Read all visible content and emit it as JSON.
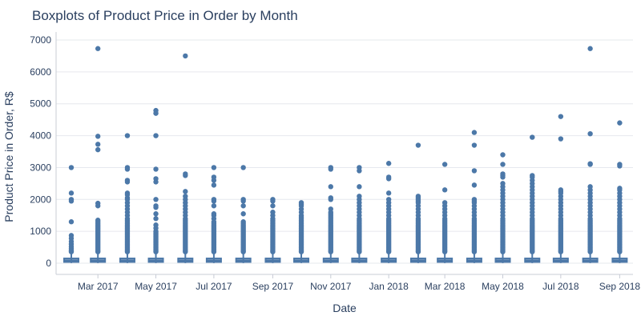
{
  "chart_data": {
    "type": "box",
    "title": "Boxplots of Product Price in Order by Month",
    "xlabel": "Date",
    "ylabel": "Product Price in Order, R$",
    "ylim": [
      -350,
      7250
    ],
    "yticks": [
      0,
      1000,
      2000,
      3000,
      4000,
      5000,
      6000,
      7000
    ],
    "xticks": [
      {
        "label": "Mar 2017",
        "date": "2017-03-01"
      },
      {
        "label": "May 2017",
        "date": "2017-05-01"
      },
      {
        "label": "Jul 2017",
        "date": "2017-07-01"
      },
      {
        "label": "Sep 2017",
        "date": "2017-09-01"
      },
      {
        "label": "Nov 2017",
        "date": "2017-11-01"
      },
      {
        "label": "Jan 2018",
        "date": "2018-01-01"
      },
      {
        "label": "Mar 2018",
        "date": "2018-03-01"
      },
      {
        "label": "May 2018",
        "date": "2018-05-01"
      },
      {
        "label": "Jul 2018",
        "date": "2018-07-01"
      },
      {
        "label": "Sep 2018",
        "date": "2018-09-01"
      }
    ],
    "xrange": [
      "2017-01-16",
      "2018-09-15"
    ],
    "grid": true,
    "color": "#4c78a8",
    "boxes": [
      {
        "month": "2017-02-01",
        "q1": 40,
        "median": 90,
        "q3": 150,
        "whisker_low": 5,
        "whisker_high": 320,
        "outliers": [
          3000,
          2200,
          2000,
          1950,
          1300,
          870,
          780,
          680,
          600,
          520,
          460,
          400,
          360
        ]
      },
      {
        "month": "2017-03-01",
        "q1": 40,
        "median": 90,
        "q3": 150,
        "whisker_low": 5,
        "whisker_high": 320,
        "outliers": [
          6730,
          3980,
          3730,
          3560,
          1880,
          1800,
          1350,
          1300,
          1250,
          1200,
          1150,
          1100,
          1050,
          1000,
          950,
          900,
          850,
          800,
          750,
          700,
          650,
          600,
          550,
          500,
          450,
          400,
          360
        ]
      },
      {
        "month": "2017-04-01",
        "q1": 40,
        "median": 90,
        "q3": 150,
        "whisker_low": 5,
        "whisker_high": 320,
        "outliers": [
          4000,
          3000,
          2950,
          2600,
          2550,
          2200,
          2150,
          2050,
          2000,
          1900,
          1800,
          1700,
          1600,
          1500,
          1400,
          1350,
          1300,
          1250,
          1200,
          1150,
          1100,
          1050,
          1000,
          950,
          900,
          850,
          800,
          750,
          700,
          650,
          600,
          550,
          500,
          450,
          400,
          360
        ]
      },
      {
        "month": "2017-05-01",
        "q1": 40,
        "median": 90,
        "q3": 150,
        "whisker_low": 5,
        "whisker_high": 320,
        "outliers": [
          4790,
          4700,
          4000,
          2950,
          2650,
          2550,
          2000,
          1800,
          1750,
          1550,
          1400,
          1200,
          1100,
          1000,
          950,
          900,
          850,
          800,
          750,
          700,
          650,
          600,
          550,
          500,
          450,
          400,
          360
        ]
      },
      {
        "month": "2017-06-01",
        "q1": 40,
        "median": 90,
        "q3": 150,
        "whisker_low": 5,
        "whisker_high": 320,
        "outliers": [
          6500,
          2800,
          2750,
          2250,
          2100,
          2000,
          1900,
          1800,
          1700,
          1600,
          1500,
          1400,
          1350,
          1300,
          1250,
          1200,
          1150,
          1100,
          1050,
          1000,
          950,
          900,
          850,
          800,
          750,
          700,
          650,
          600,
          550,
          500,
          450,
          400,
          360
        ]
      },
      {
        "month": "2017-07-01",
        "q1": 40,
        "median": 90,
        "q3": 150,
        "whisker_low": 5,
        "whisker_high": 320,
        "outliers": [
          3000,
          2700,
          2600,
          2450,
          2000,
          1950,
          1800,
          1550,
          1500,
          1400,
          1300,
          1250,
          1200,
          1150,
          1100,
          1050,
          1000,
          950,
          900,
          850,
          800,
          750,
          700,
          650,
          600,
          550,
          500,
          450,
          400,
          360
        ]
      },
      {
        "month": "2017-08-01",
        "q1": 40,
        "median": 90,
        "q3": 150,
        "whisker_low": 5,
        "whisker_high": 320,
        "outliers": [
          3000,
          2000,
          1950,
          1800,
          1550,
          1300,
          1250,
          1200,
          1150,
          1100,
          1050,
          1000,
          950,
          900,
          850,
          800,
          750,
          700,
          650,
          600,
          550,
          500,
          450,
          400,
          360
        ]
      },
      {
        "month": "2017-09-01",
        "q1": 40,
        "median": 90,
        "q3": 150,
        "whisker_low": 5,
        "whisker_high": 320,
        "outliers": [
          2000,
          1950,
          1800,
          1600,
          1500,
          1400,
          1350,
          1300,
          1250,
          1200,
          1150,
          1100,
          1050,
          1000,
          950,
          900,
          850,
          800,
          750,
          700,
          650,
          600,
          550,
          500,
          450,
          400,
          360
        ]
      },
      {
        "month": "2017-10-01",
        "q1": 40,
        "median": 90,
        "q3": 150,
        "whisker_low": 5,
        "whisker_high": 320,
        "outliers": [
          1900,
          1850,
          1800,
          1700,
          1600,
          1500,
          1450,
          1400,
          1350,
          1300,
          1250,
          1200,
          1150,
          1100,
          1050,
          1000,
          950,
          900,
          850,
          800,
          750,
          700,
          650,
          600,
          550,
          500,
          450,
          400,
          360
        ]
      },
      {
        "month": "2017-11-01",
        "q1": 40,
        "median": 90,
        "q3": 150,
        "whisker_low": 5,
        "whisker_high": 320,
        "outliers": [
          3000,
          2950,
          2400,
          2050,
          2000,
          1700,
          1600,
          1550,
          1500,
          1450,
          1400,
          1350,
          1300,
          1250,
          1200,
          1150,
          1100,
          1050,
          1000,
          950,
          900,
          850,
          800,
          750,
          700,
          650,
          600,
          550,
          500,
          450,
          400,
          360
        ]
      },
      {
        "month": "2017-12-01",
        "q1": 40,
        "median": 90,
        "q3": 150,
        "whisker_low": 5,
        "whisker_high": 320,
        "outliers": [
          3000,
          2900,
          2400,
          2100,
          2000,
          1900,
          1800,
          1700,
          1600,
          1500,
          1400,
          1350,
          1300,
          1250,
          1200,
          1150,
          1100,
          1050,
          1000,
          950,
          900,
          850,
          800,
          750,
          700,
          650,
          600,
          550,
          500,
          450,
          400,
          360
        ]
      },
      {
        "month": "2018-01-01",
        "q1": 40,
        "median": 90,
        "q3": 150,
        "whisker_low": 5,
        "whisker_high": 320,
        "outliers": [
          3130,
          2700,
          2650,
          2200,
          2000,
          1900,
          1800,
          1700,
          1600,
          1500,
          1400,
          1350,
          1300,
          1250,
          1200,
          1150,
          1100,
          1050,
          1000,
          950,
          900,
          850,
          800,
          750,
          700,
          650,
          600,
          550,
          500,
          450,
          400,
          360
        ]
      },
      {
        "month": "2018-02-01",
        "q1": 40,
        "median": 90,
        "q3": 150,
        "whisker_low": 5,
        "whisker_high": 320,
        "outliers": [
          3700,
          2100,
          2050,
          2000,
          1950,
          1900,
          1800,
          1700,
          1600,
          1500,
          1400,
          1350,
          1300,
          1250,
          1200,
          1150,
          1100,
          1050,
          1000,
          950,
          900,
          850,
          800,
          750,
          700,
          650,
          600,
          550,
          500,
          450,
          400,
          360
        ]
      },
      {
        "month": "2018-03-01",
        "q1": 40,
        "median": 90,
        "q3": 150,
        "whisker_low": 5,
        "whisker_high": 320,
        "outliers": [
          3100,
          2300,
          1900,
          1800,
          1700,
          1600,
          1500,
          1400,
          1350,
          1300,
          1250,
          1200,
          1150,
          1100,
          1050,
          1000,
          950,
          900,
          850,
          800,
          750,
          700,
          650,
          600,
          550,
          500,
          450,
          400,
          360
        ]
      },
      {
        "month": "2018-04-01",
        "q1": 40,
        "median": 90,
        "q3": 150,
        "whisker_low": 5,
        "whisker_high": 320,
        "outliers": [
          4100,
          3700,
          2900,
          2450,
          2000,
          1950,
          1900,
          1800,
          1700,
          1600,
          1500,
          1400,
          1350,
          1300,
          1250,
          1200,
          1150,
          1100,
          1050,
          1000,
          950,
          900,
          850,
          800,
          750,
          700,
          650,
          600,
          550,
          500,
          450,
          400,
          360
        ]
      },
      {
        "month": "2018-05-01",
        "q1": 40,
        "median": 90,
        "q3": 150,
        "whisker_low": 5,
        "whisker_high": 320,
        "outliers": [
          3400,
          3100,
          2800,
          2750,
          2700,
          2500,
          2400,
          2300,
          2200,
          2100,
          2000,
          1900,
          1800,
          1700,
          1600,
          1500,
          1400,
          1350,
          1300,
          1250,
          1200,
          1150,
          1100,
          1050,
          1000,
          950,
          900,
          850,
          800,
          750,
          700,
          650,
          600,
          550,
          500,
          450,
          400,
          360
        ]
      },
      {
        "month": "2018-06-01",
        "q1": 40,
        "median": 90,
        "q3": 150,
        "whisker_low": 5,
        "whisker_high": 320,
        "outliers": [
          3950,
          2750,
          2700,
          2600,
          2500,
          2400,
          2300,
          2200,
          2100,
          2000,
          1900,
          1800,
          1700,
          1600,
          1500,
          1400,
          1350,
          1300,
          1250,
          1200,
          1150,
          1100,
          1050,
          1000,
          950,
          900,
          850,
          800,
          750,
          700,
          650,
          600,
          550,
          500,
          450,
          400,
          360
        ]
      },
      {
        "month": "2018-07-01",
        "q1": 40,
        "median": 90,
        "q3": 150,
        "whisker_low": 5,
        "whisker_high": 320,
        "outliers": [
          4600,
          3900,
          2300,
          2250,
          2200,
          2100,
          2000,
          1900,
          1800,
          1700,
          1600,
          1500,
          1400,
          1350,
          1300,
          1250,
          1200,
          1150,
          1100,
          1050,
          1000,
          950,
          900,
          850,
          800,
          750,
          700,
          650,
          600,
          550,
          500,
          450,
          400,
          360
        ]
      },
      {
        "month": "2018-08-01",
        "q1": 40,
        "median": 90,
        "q3": 150,
        "whisker_low": 5,
        "whisker_high": 320,
        "outliers": [
          6730,
          4060,
          3120,
          3100,
          2400,
          2300,
          2200,
          2100,
          2000,
          1900,
          1800,
          1700,
          1600,
          1500,
          1400,
          1350,
          1300,
          1250,
          1200,
          1150,
          1100,
          1050,
          1000,
          950,
          900,
          850,
          800,
          750,
          700,
          650,
          600,
          550,
          500,
          450,
          400,
          360
        ]
      },
      {
        "month": "2018-09-01",
        "q1": 40,
        "median": 90,
        "q3": 150,
        "whisker_low": 5,
        "whisker_high": 320,
        "outliers": [
          4400,
          3100,
          3050,
          2350,
          2300,
          2200,
          2100,
          2000,
          1900,
          1800,
          1700,
          1600,
          1500,
          1400,
          1350,
          1300,
          1250,
          1200,
          1150,
          1100,
          1050,
          1000,
          950,
          900,
          850,
          800,
          750,
          700,
          650,
          600,
          550,
          500,
          450,
          400,
          360
        ]
      }
    ]
  }
}
